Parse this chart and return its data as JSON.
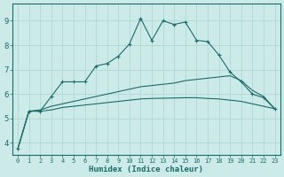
{
  "xlabel": "Humidex (Indice chaleur)",
  "background_color": "#cceae7",
  "line_color": "#1a6b6b",
  "grid_color": "#b0d8d4",
  "xlim": [
    -0.5,
    23.5
  ],
  "ylim": [
    3.5,
    9.7
  ],
  "yticks": [
    4,
    5,
    6,
    7,
    8,
    9
  ],
  "xticks": [
    0,
    1,
    2,
    3,
    4,
    5,
    6,
    7,
    8,
    9,
    10,
    11,
    12,
    13,
    14,
    15,
    16,
    17,
    18,
    19,
    20,
    21,
    22,
    23
  ],
  "line1_x": [
    0,
    1,
    2,
    3,
    4,
    5,
    6,
    7,
    8,
    9,
    10,
    11,
    12,
    13,
    14,
    15,
    16,
    17,
    18,
    19,
    20,
    21,
    22,
    23
  ],
  "line1_y": [
    3.75,
    5.3,
    5.3,
    5.9,
    6.5,
    6.5,
    6.5,
    7.15,
    7.25,
    7.55,
    8.05,
    9.1,
    8.2,
    9.0,
    8.85,
    8.95,
    8.2,
    8.15,
    7.6,
    6.9,
    6.5,
    6.0,
    5.85,
    5.4
  ],
  "line2_x": [
    0,
    1,
    2,
    3,
    4,
    5,
    6,
    7,
    8,
    9,
    10,
    11,
    12,
    13,
    14,
    15,
    16,
    17,
    18,
    19,
    20,
    21,
    22,
    23
  ],
  "line2_y": [
    3.75,
    5.3,
    5.35,
    5.5,
    5.6,
    5.7,
    5.8,
    5.9,
    6.0,
    6.1,
    6.2,
    6.3,
    6.35,
    6.4,
    6.45,
    6.55,
    6.6,
    6.65,
    6.7,
    6.75,
    6.55,
    6.15,
    5.9,
    5.4
  ],
  "line3_x": [
    0,
    1,
    2,
    3,
    4,
    5,
    6,
    7,
    8,
    9,
    10,
    11,
    12,
    13,
    14,
    15,
    16,
    17,
    18,
    19,
    20,
    21,
    22,
    23
  ],
  "line3_y": [
    3.75,
    5.3,
    5.3,
    5.35,
    5.45,
    5.5,
    5.55,
    5.6,
    5.65,
    5.7,
    5.75,
    5.8,
    5.82,
    5.83,
    5.84,
    5.85,
    5.85,
    5.82,
    5.8,
    5.75,
    5.7,
    5.6,
    5.5,
    5.4
  ],
  "marker": "+"
}
